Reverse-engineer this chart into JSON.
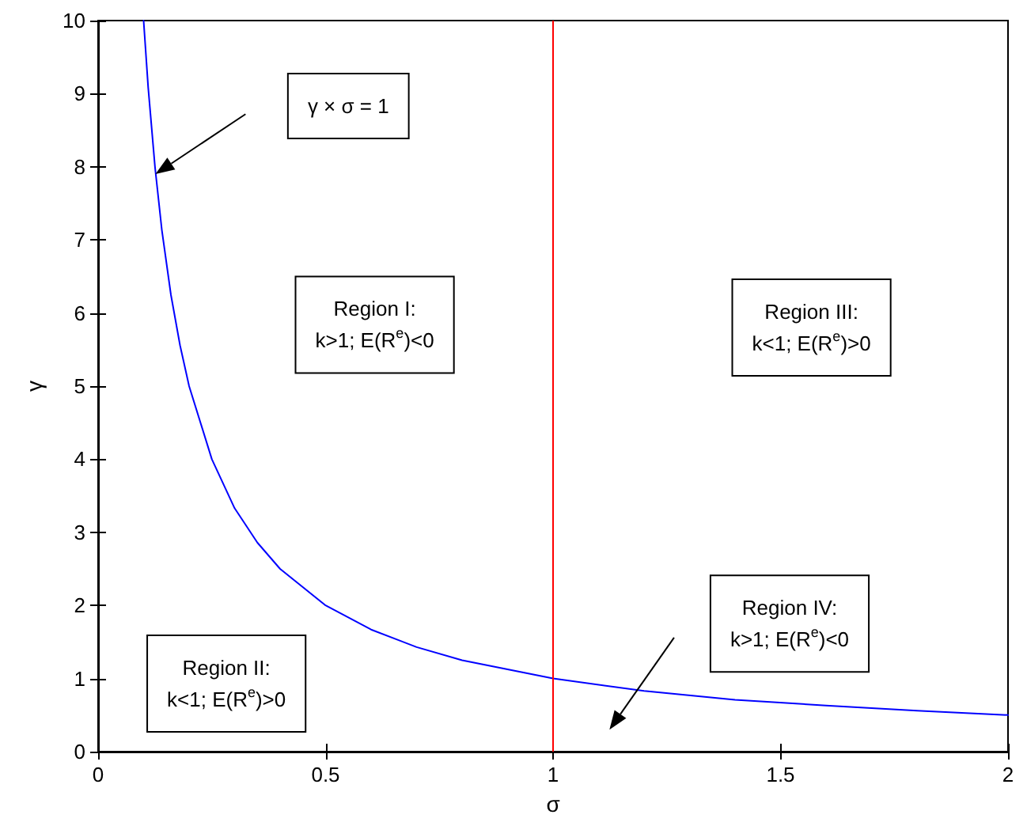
{
  "chart_data": {
    "type": "line",
    "xlabel": "σ",
    "ylabel": "γ",
    "x": [
      0.1,
      0.11,
      0.125,
      0.14,
      0.16,
      0.18,
      0.2,
      0.25,
      0.3,
      0.35,
      0.4,
      0.5,
      0.6,
      0.7,
      0.8,
      1,
      1.2,
      1.4,
      1.6,
      1.8,
      2
    ],
    "series": [
      {
        "color": "#0000ff",
        "values": [
          10,
          9.09,
          8,
          7.14,
          6.25,
          5.56,
          5,
          4,
          3.33,
          2.86,
          2.5,
          2,
          1.67,
          1.43,
          1.25,
          1,
          0.83,
          0.71,
          0.63,
          0.56,
          0.5
        ]
      }
    ],
    "xlim": [
      0,
      2
    ],
    "xticks": [
      0,
      0.5,
      1,
      1.5,
      2
    ],
    "ylim": [
      0,
      10
    ],
    "yticks": [
      0,
      1,
      2,
      3,
      4,
      5,
      6,
      7,
      8,
      9,
      10
    ],
    "ref_lines": [
      {
        "axis": "x",
        "value": 1,
        "color": "#ff0000"
      }
    ],
    "annotations": [
      "γ × σ = 1",
      "Region I:\nk>1; E(R$^{e}$)<0",
      "Region III:\nk<1; E(R$^{e}$)>0",
      "Region II:\nk<1; E(R$^{e}$)>0",
      "Region IV:\nk>1; E(R$^{e}$)<0"
    ],
    "grid": false,
    "marker": "none",
    "line_style": "solid"
  }
}
